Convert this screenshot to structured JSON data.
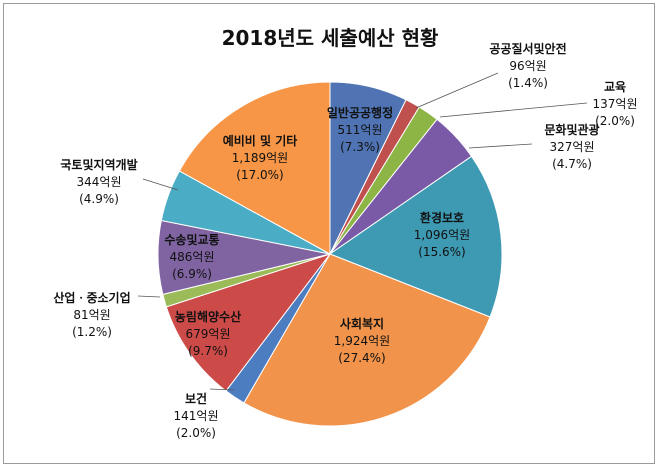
{
  "chart_data": {
    "type": "pie",
    "title": "2018년도 세출예산 현황",
    "slices": [
      {
        "name": "일반공공행정",
        "amount": "511억원",
        "percent": "(7.3%)",
        "value": 7.3,
        "color": "#4f73b3"
      },
      {
        "name": "공공질서및안전",
        "amount": "96억원",
        "percent": "(1.4%)",
        "value": 1.4,
        "color": "#c0504d"
      },
      {
        "name": "교육",
        "amount": "137억원",
        "percent": "(2.0%)",
        "value": 2.0,
        "color": "#8cb545"
      },
      {
        "name": "문화및관광",
        "amount": "327억원",
        "percent": "(4.7%)",
        "value": 4.7,
        "color": "#7a5aa6"
      },
      {
        "name": "환경보호",
        "amount": "1,096억원",
        "percent": "(15.6%)",
        "value": 15.6,
        "color": "#3e9ab3"
      },
      {
        "name": "사회복지",
        "amount": "1,924억원",
        "percent": "(27.4%)",
        "value": 27.4,
        "color": "#f1934a"
      },
      {
        "name": "보건",
        "amount": "141억원",
        "percent": "(2.0%)",
        "value": 2.0,
        "color": "#4d7dc1"
      },
      {
        "name": "농림해양수산",
        "amount": "679억원",
        "percent": "(9.7%)",
        "value": 9.7,
        "color": "#cc4b48"
      },
      {
        "name": "산업ㆍ중소기업",
        "amount": "81억원",
        "percent": "(1.2%)",
        "value": 1.2,
        "color": "#9bbb59"
      },
      {
        "name": "수송및교통",
        "amount": "486억원",
        "percent": "(6.9%)",
        "value": 6.9,
        "color": "#8064a2"
      },
      {
        "name": "국토및지역개발",
        "amount": "344억원",
        "percent": "(4.9%)",
        "value": 4.9,
        "color": "#4bacc6"
      },
      {
        "name": "예비비 및 기타",
        "amount": "1,189억원",
        "percent": "(17.0%)",
        "value": 17.0,
        "color": "#f79646"
      }
    ]
  }
}
